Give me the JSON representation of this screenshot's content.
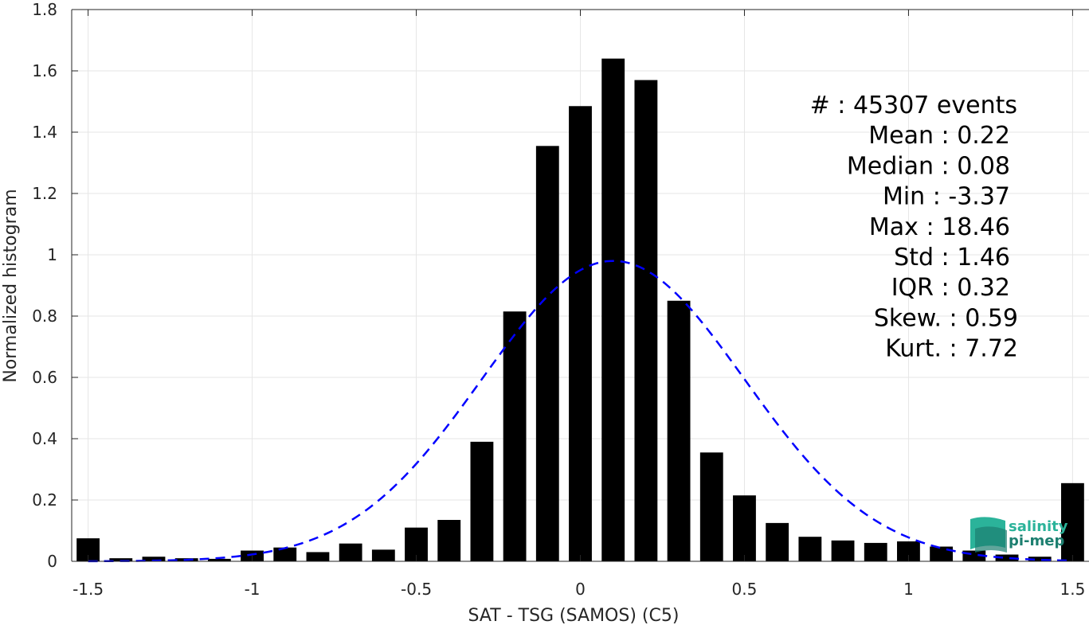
{
  "chart_data": {
    "type": "bar",
    "title": "",
    "xlabel": "SAT - TSG (SAMOS) (C5)",
    "ylabel": "Normalized histogram",
    "xlim": [
      -1.55,
      1.55
    ],
    "ylim": [
      0,
      1.8
    ],
    "grid": true,
    "bar_width": 0.07,
    "x_ticks": [
      -1.5,
      -1,
      -0.5,
      0,
      0.5,
      1,
      1.5
    ],
    "x_tick_labels": [
      "-1.5",
      "-1",
      "-0.5",
      "0",
      "0.5",
      "1",
      "1.5"
    ],
    "y_ticks": [
      0,
      0.2,
      0.4,
      0.6,
      0.8,
      1,
      1.2,
      1.4,
      1.6,
      1.8
    ],
    "y_tick_labels": [
      "0",
      "0.2",
      "0.4",
      "0.6",
      "0.8",
      "1",
      "1.2",
      "1.4",
      "1.6",
      "1.8"
    ],
    "bar_color": "#000000",
    "x": [
      -1.5,
      -1.4,
      -1.3,
      -1.2,
      -1.1,
      -1.0,
      -0.9,
      -0.8,
      -0.7,
      -0.6,
      -0.5,
      -0.4,
      -0.3,
      -0.2,
      -0.1,
      0.0,
      0.1,
      0.2,
      0.3,
      0.4,
      0.5,
      0.6,
      0.7,
      0.8,
      0.9,
      1.0,
      1.1,
      1.2,
      1.3,
      1.4,
      1.5
    ],
    "values": [
      0.075,
      0.01,
      0.015,
      0.01,
      0.008,
      0.035,
      0.045,
      0.03,
      0.058,
      0.038,
      0.11,
      0.135,
      0.39,
      0.815,
      1.355,
      1.485,
      1.64,
      1.57,
      0.85,
      0.355,
      0.215,
      0.125,
      0.08,
      0.068,
      0.06,
      0.065,
      0.048,
      0.035,
      0.022,
      0.015,
      0.255
    ],
    "fit": {
      "type": "gaussian",
      "peak": 0.98,
      "center": 0.1,
      "sigma": 0.4,
      "color": "#0000ff",
      "style": "dashed"
    },
    "stats": [
      {
        "label": "#  : 45307 events"
      },
      {
        "label": "Mean : 0.22"
      },
      {
        "label": "Median : 0.08"
      },
      {
        "label": "Min : -3.37"
      },
      {
        "label": "Max : 18.46"
      },
      {
        "label": "Std : 1.46"
      },
      {
        "label": "IQR : 0.32"
      },
      {
        "label": "Skew. : 0.59"
      },
      {
        "label": "Kurt. : 7.72"
      }
    ]
  },
  "logo": {
    "line1": "salinity",
    "line2": "pi-mep",
    "color": "#2bb39a",
    "color_dark": "#1d7f70"
  }
}
